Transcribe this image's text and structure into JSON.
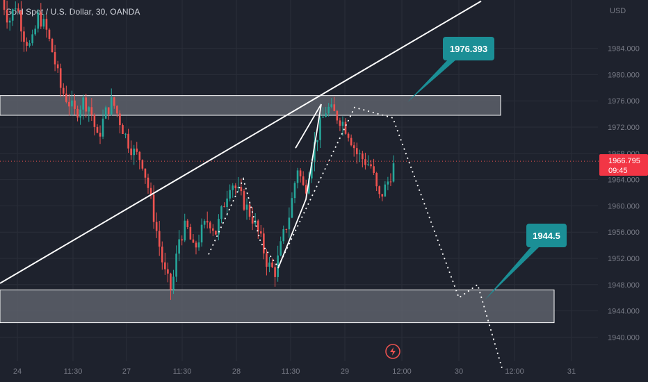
{
  "symbol_label": "Gold Spot / U.S. Dollar, 30, OANDA",
  "currency": "USD",
  "last_price": "1966.795",
  "countdown": "09:45",
  "colors": {
    "background": "#1e222d",
    "up": "#26a69a",
    "down": "#ef5350",
    "callout": "#1b8f96",
    "zone_fill": "#5d606b",
    "price_tag": "#f23645"
  },
  "callouts": [
    {
      "label": "1976.393",
      "price": 1976.393
    },
    {
      "label": "1944.5",
      "price": 1944.5
    }
  ],
  "icons": [
    "lightning-icon"
  ],
  "chart_data": {
    "type": "candlestick",
    "x_axis_labels": [
      "24",
      "11:30",
      "27",
      "11:30",
      "28",
      "11:30",
      "29",
      "12:00",
      "30",
      "12:00",
      "31"
    ],
    "y_axis_labels": [
      "1984.000",
      "1980.000",
      "1976.000",
      "1972.000",
      "1968.000",
      "1964.000",
      "1960.000",
      "1956.000",
      "1952.000",
      "1948.000",
      "1944.000",
      "1940.000"
    ],
    "ylim": [
      1937,
      1991
    ],
    "grid": true,
    "zones": [
      {
        "name": "resistance",
        "from": 1973.8,
        "to": 1976.8
      },
      {
        "name": "support",
        "from": 1942.2,
        "to": 1947.2
      }
    ],
    "trendline_prices": [
      1948.2,
      1976.8
    ],
    "current_price": 1966.795,
    "price_path": [
      1992,
      1988,
      1991,
      1986,
      1984,
      1989,
      1987,
      1983,
      1978,
      1976,
      1974,
      1976,
      1975,
      1970,
      1974,
      1976,
      1973,
      1970,
      1968,
      1967,
      1962,
      1956,
      1950,
      1947,
      1955,
      1957,
      1953,
      1956,
      1958,
      1956,
      1960,
      1964,
      1962,
      1960,
      1958,
      1955,
      1951,
      1950,
      1955,
      1959,
      1966,
      1962,
      1968,
      1972,
      1975,
      1974,
      1973,
      1971,
      1968,
      1967,
      1966,
      1961,
      1963,
      1966
    ],
    "projection_path": [
      1952.6,
      1964.1,
      1954.4,
      1950.7,
      1975.0,
      1973.4,
      1946.0,
      1948.0,
      1934.9
    ]
  }
}
